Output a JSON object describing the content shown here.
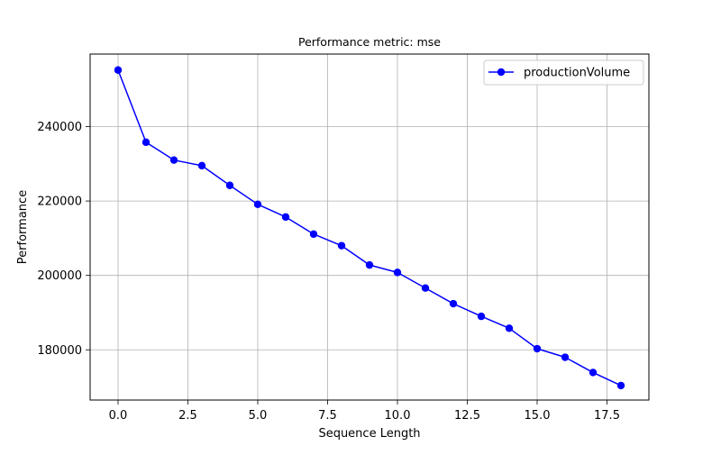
{
  "chart_data": {
    "type": "line",
    "title": "Performance metric: mse",
    "xlabel": "Sequence Length",
    "ylabel": "Performance",
    "xlim": [
      -1.0,
      19.0
    ],
    "ylim": [
      166500,
      259500
    ],
    "xticks": [
      0.0,
      2.5,
      5.0,
      7.5,
      10.0,
      12.5,
      15.0,
      17.5
    ],
    "xtick_labels": [
      "0.0",
      "2.5",
      "5.0",
      "7.5",
      "10.0",
      "12.5",
      "15.0",
      "17.5"
    ],
    "yticks": [
      180000,
      200000,
      220000,
      240000
    ],
    "ytick_labels": [
      "180000",
      "200000",
      "220000",
      "240000"
    ],
    "grid": true,
    "legend_position": "top-right",
    "series": [
      {
        "name": "productionVolume",
        "color": "#0000ff",
        "marker": "circle",
        "x": [
          0,
          1,
          2,
          3,
          4,
          5,
          6,
          7,
          8,
          9,
          10,
          11,
          12,
          13,
          14,
          15,
          16,
          17,
          18
        ],
        "values": [
          255200,
          235800,
          231000,
          229500,
          224200,
          219100,
          215700,
          211100,
          208000,
          202800,
          200800,
          196600,
          192400,
          189000,
          185800,
          180300,
          178000,
          173900,
          170400
        ]
      }
    ]
  }
}
